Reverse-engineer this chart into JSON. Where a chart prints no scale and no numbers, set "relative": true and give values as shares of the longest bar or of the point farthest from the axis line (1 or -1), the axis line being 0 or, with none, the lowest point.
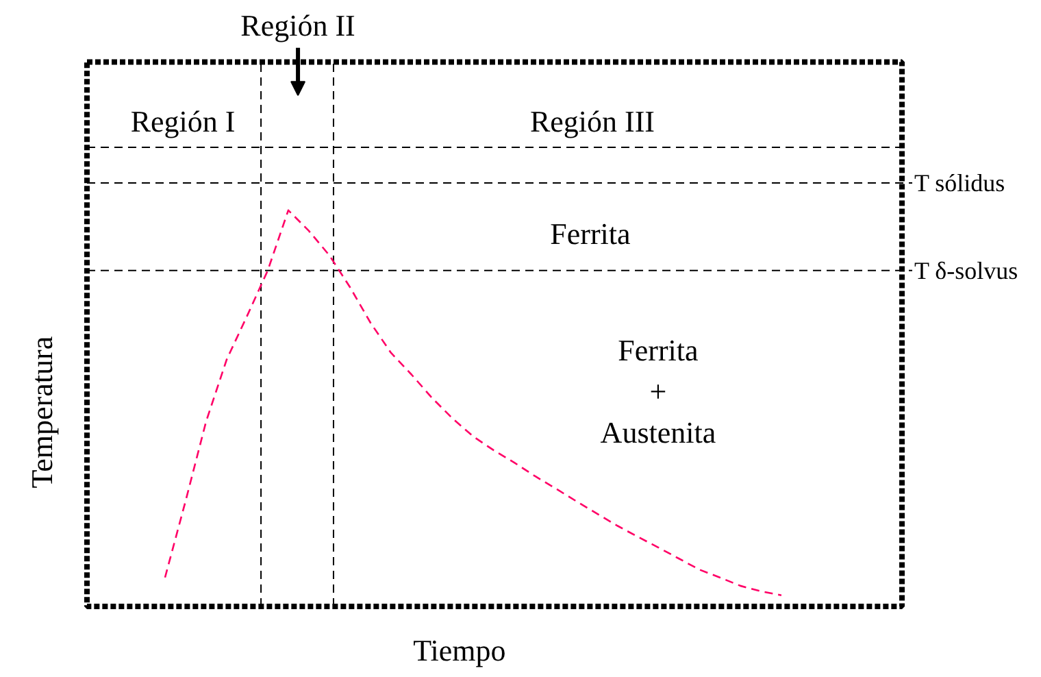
{
  "chart_data": {
    "type": "line",
    "relative": true,
    "xlabel": "Tiempo",
    "ylabel": "Temperatura",
    "categories": [
      null,
      null,
      null,
      null,
      null,
      null,
      null,
      null,
      null,
      null,
      null,
      null,
      null,
      null,
      null,
      null,
      null,
      null,
      null,
      null,
      null,
      null,
      null,
      null,
      null,
      null,
      null,
      null,
      null,
      null,
      null
    ],
    "series": [
      {
        "color": "#ff0066",
        "values": [
          0.073,
          0.266,
          0.467,
          0.623,
          0.734,
          0.848,
          1,
          0.948,
          0.886,
          0.806,
          0.716,
          0.64,
          0.585,
          0.526,
          0.474,
          0.429,
          0.394,
          0.363,
          0.329,
          0.298,
          0.266,
          0.235,
          0.204,
          0.176,
          0.149,
          0.121,
          0.093,
          0.073,
          0.052,
          0.038,
          0.028
        ]
      }
    ],
    "line_style": "dashed",
    "ref_lines": [
      {
        "axis": "y",
        "value": 1.159,
        "label": null,
        "color": "#000000",
        "line_style": "dashed"
      },
      {
        "axis": "y",
        "value": 1.069,
        "label": "T sólidus",
        "color": "#000000",
        "line_style": "dashed"
      },
      {
        "axis": "y",
        "value": 0.848,
        "label": "T δ-solvus",
        "color": "#000000",
        "line_style": "dashed"
      }
    ],
    "annotations": [
      "Región I",
      "Región II",
      "Región III",
      "Ferrita",
      "Ferrita\n+\nAustenita"
    ]
  }
}
